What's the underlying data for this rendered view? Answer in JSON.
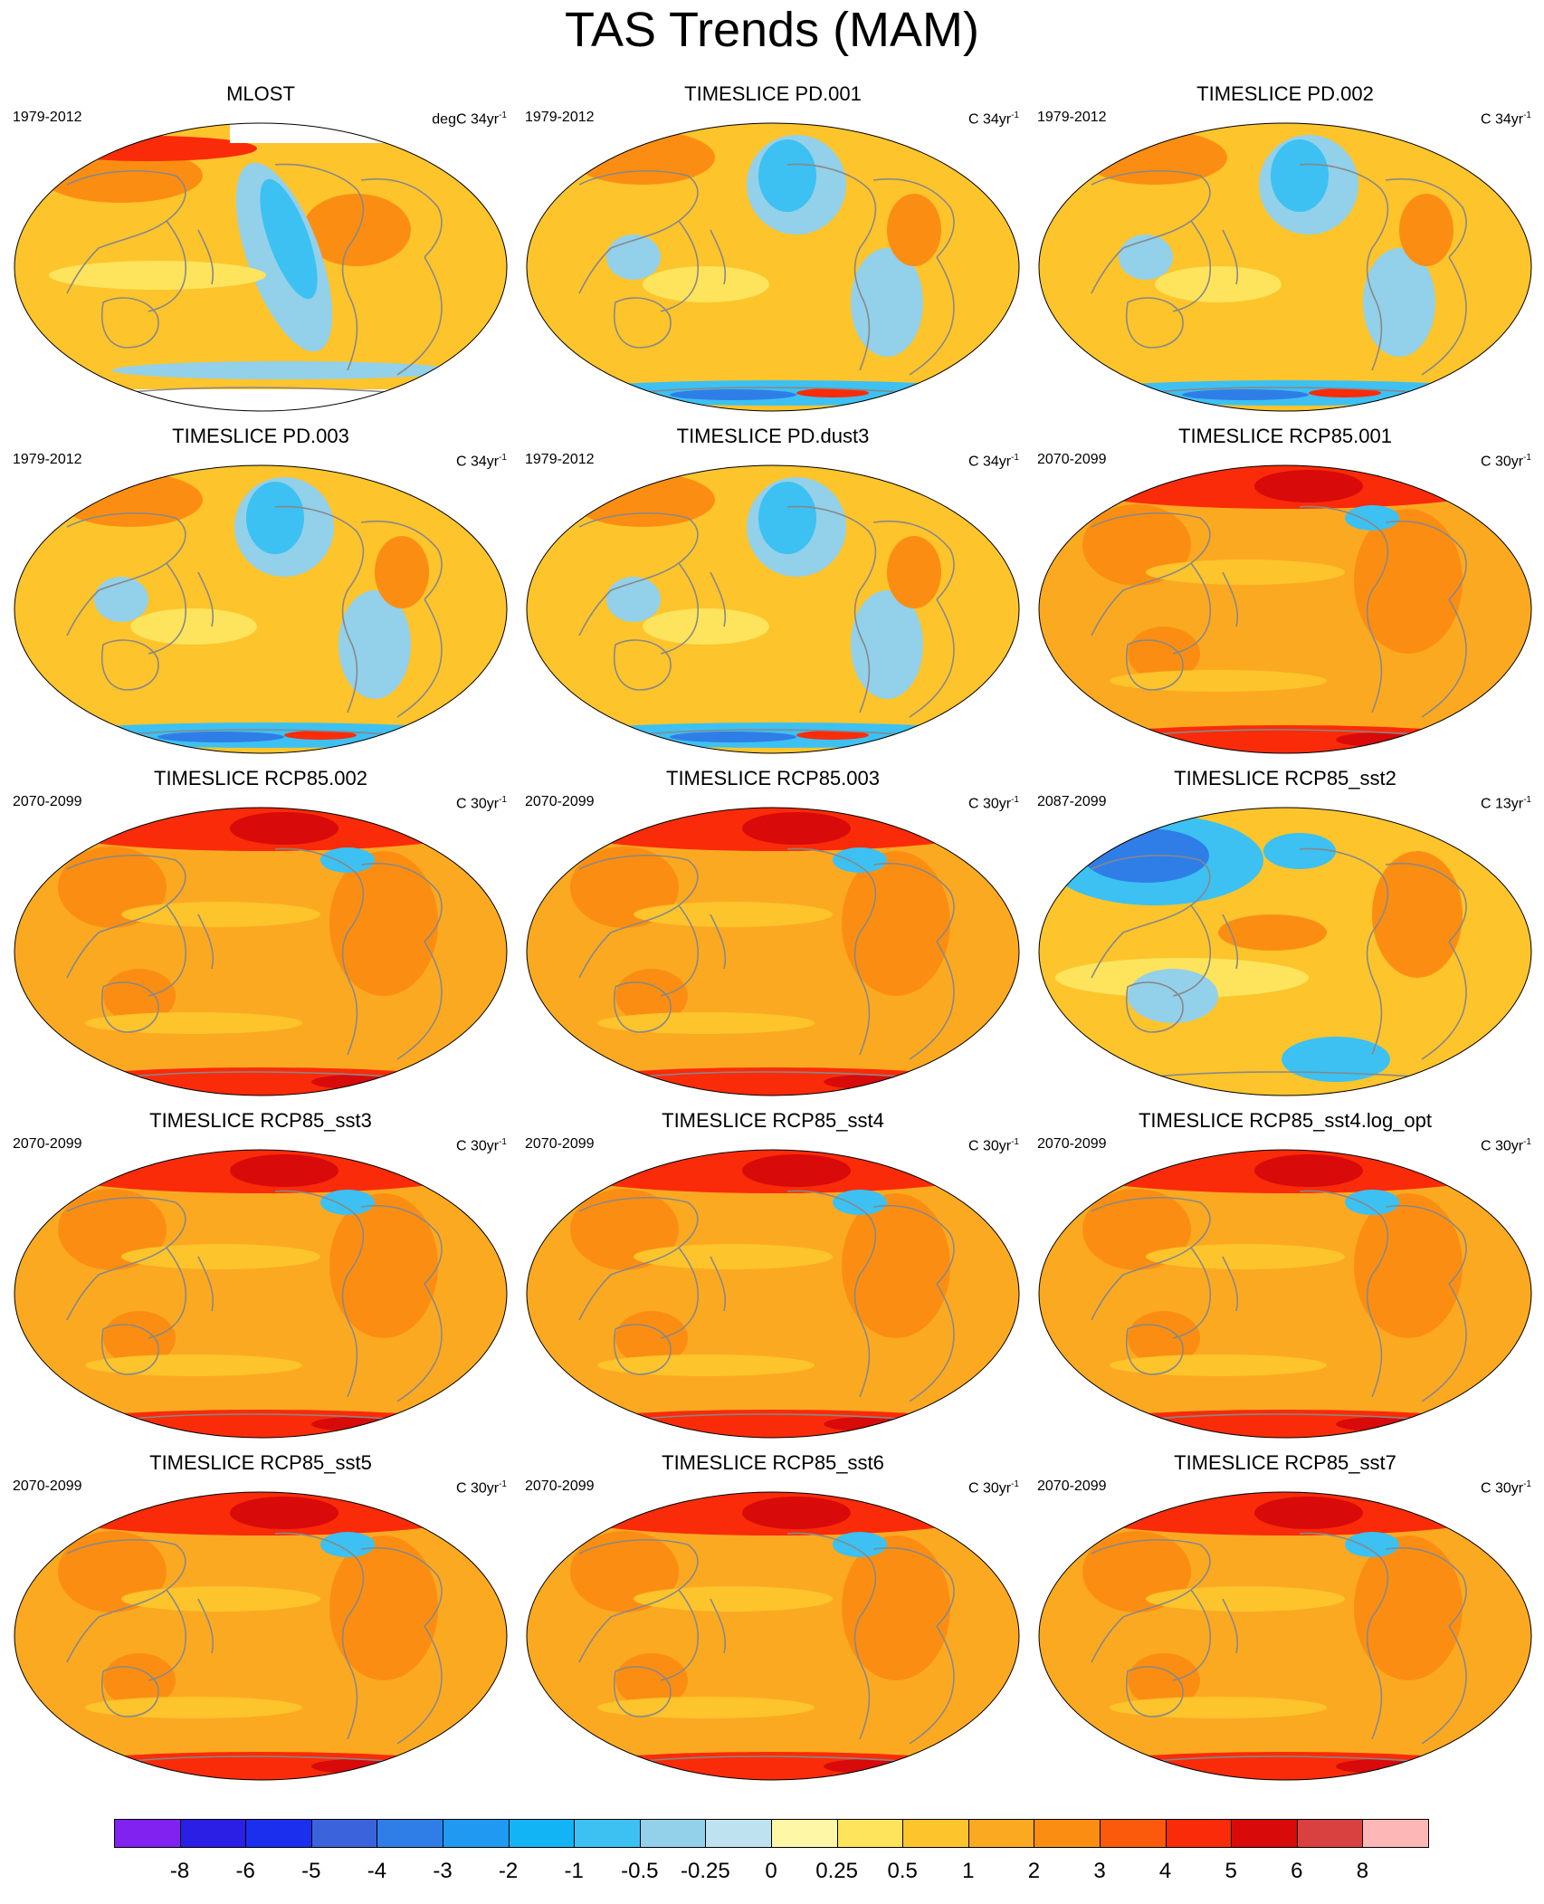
{
  "title": "TAS Trends (MAM)",
  "panels": [
    {
      "title": "MLOST",
      "period": "1979-2012",
      "units": "degC 34yr",
      "units_sup": "-1",
      "style": "obs"
    },
    {
      "title": "TIMESLICE PD.001",
      "period": "1979-2012",
      "units": "C 34yr",
      "units_sup": "-1",
      "style": "pd"
    },
    {
      "title": "TIMESLICE PD.002",
      "period": "1979-2012",
      "units": "C 34yr",
      "units_sup": "-1",
      "style": "pd"
    },
    {
      "title": "TIMESLICE PD.003",
      "period": "1979-2012",
      "units": "C 34yr",
      "units_sup": "-1",
      "style": "pd"
    },
    {
      "title": "TIMESLICE PD.dust3",
      "period": "1979-2012",
      "units": "C 34yr",
      "units_sup": "-1",
      "style": "pd"
    },
    {
      "title": "TIMESLICE RCP85.001",
      "period": "2070-2099",
      "units": "C 30yr",
      "units_sup": "-1",
      "style": "rcp"
    },
    {
      "title": "TIMESLICE RCP85.002",
      "period": "2070-2099",
      "units": "C 30yr",
      "units_sup": "-1",
      "style": "rcp"
    },
    {
      "title": "TIMESLICE RCP85.003",
      "period": "2070-2099",
      "units": "C 30yr",
      "units_sup": "-1",
      "style": "rcp"
    },
    {
      "title": "TIMESLICE RCP85_sst2",
      "period": "2087-2099",
      "units": "C 13yr",
      "units_sup": "-1",
      "style": "mixed"
    },
    {
      "title": "TIMESLICE RCP85_sst3",
      "period": "2070-2099",
      "units": "C 30yr",
      "units_sup": "-1",
      "style": "rcp"
    },
    {
      "title": "TIMESLICE RCP85_sst4",
      "period": "2070-2099",
      "units": "C 30yr",
      "units_sup": "-1",
      "style": "rcp"
    },
    {
      "title": "TIMESLICE RCP85_sst4.log_opt",
      "period": "2070-2099",
      "units": "C 30yr",
      "units_sup": "-1",
      "style": "rcp"
    },
    {
      "title": "TIMESLICE RCP85_sst5",
      "period": "2070-2099",
      "units": "C 30yr",
      "units_sup": "-1",
      "style": "rcp"
    },
    {
      "title": "TIMESLICE RCP85_sst6",
      "period": "2070-2099",
      "units": "C 30yr",
      "units_sup": "-1",
      "style": "rcp"
    },
    {
      "title": "TIMESLICE RCP85_sst7",
      "period": "2070-2099",
      "units": "C 30yr",
      "units_sup": "-1",
      "style": "rcp"
    }
  ],
  "colorbar": {
    "colors": [
      "#8122f0",
      "#2b1fe6",
      "#1b2fef",
      "#3a63dc",
      "#2f7ee8",
      "#1f99f2",
      "#12b4f5",
      "#3cc1f2",
      "#93d0ea",
      "#bfe2f1",
      "#fdf7a6",
      "#fde45c",
      "#fdc42c",
      "#fca922",
      "#fb8e12",
      "#fb5a0d",
      "#fa2b08",
      "#d80a0a",
      "#d94040",
      "#fdb7b7"
    ],
    "labels": [
      "-8",
      "-6",
      "-5",
      "-4",
      "-3",
      "-2",
      "-1",
      "-0.5",
      "-0.25",
      "0",
      "0.25",
      "0.5",
      "1",
      "2",
      "3",
      "4",
      "5",
      "6",
      "8"
    ]
  },
  "map_colors": {
    "ocean_mid": "#fca922",
    "warm": "#fdc42c",
    "hot": "#fb8e12",
    "hotter": "#fa2b08",
    "extreme": "#d80a0a",
    "cool": "#93d0ea",
    "cooler": "#3cc1f2",
    "cold": "#2f7ee8",
    "pale": "#fde45c",
    "coast": "#888888"
  }
}
